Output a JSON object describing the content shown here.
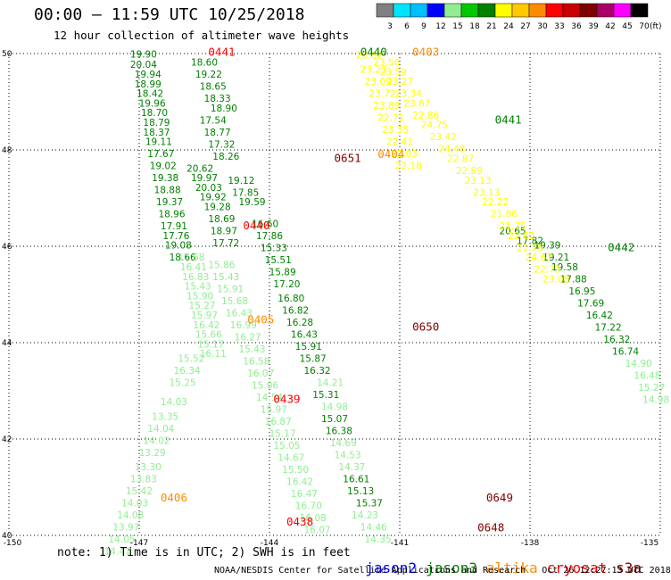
{
  "header": {
    "title": "00:00 – 11:59 UTC 10/25/2018",
    "subtitle": "12 hour collection of altimeter wave heights"
  },
  "colorbar": {
    "labels": [
      "3",
      "6",
      "9",
      "12",
      "15",
      "18",
      "21",
      "24",
      "27",
      "30",
      "33",
      "36",
      "39",
      "42",
      "45",
      "70"
    ],
    "unit": "(ft)",
    "colors": [
      "#808080",
      "#00e5ff",
      "#00bfff",
      "#0000ff",
      "#90ee90",
      "#00c800",
      "#008000",
      "#ffff00",
      "#ffc800",
      "#ff8c00",
      "#ff0000",
      "#c80000",
      "#800000",
      "#aa0066",
      "#ff00ff",
      "#000000"
    ]
  },
  "footer": {
    "note": "note: 1) Time is in UTC; 2) SWH is in feet",
    "credit": "NOAA/NESDIS Center for Satellite Applications and Research   Oct 26 12:27:13 UTC 2018",
    "legend": [
      {
        "label": "jason2",
        "color": "#0000ff"
      },
      {
        "label": "jason3",
        "color": "#008000"
      },
      {
        "label": "altika",
        "color": "#ff8c00"
      },
      {
        "label": "cryosat",
        "color": "#ff0000"
      },
      {
        "label": "s3a",
        "color": "#800000"
      }
    ]
  },
  "chart_data": {
    "type": "scatter",
    "x_ticks": [
      "-150",
      "-147",
      "-144",
      "-141",
      "-138",
      "-135"
    ],
    "y_ticks": [
      "40",
      "42",
      "44",
      "46",
      "48",
      "50"
    ],
    "xlim": [
      -150,
      -135
    ],
    "ylim": [
      40,
      50
    ],
    "grid": true,
    "track_times": [
      {
        "text": "0441",
        "lon": -145.1,
        "lat": 49.95,
        "color": "#ff0000"
      },
      {
        "text": "0440",
        "lon": -141.6,
        "lat": 49.95,
        "color": "#008000"
      },
      {
        "text": "0403",
        "lon": -140.4,
        "lat": 49.95,
        "color": "#ff8c00"
      },
      {
        "text": "0441",
        "lon": -138.5,
        "lat": 48.55,
        "color": "#008000"
      },
      {
        "text": "0404",
        "lon": -141.2,
        "lat": 47.83,
        "color": "#ff8c00"
      },
      {
        "text": "0651",
        "lon": -142.2,
        "lat": 47.75,
        "color": "#800000"
      },
      {
        "text": "0440",
        "lon": -144.3,
        "lat": 46.35,
        "color": "#ff0000"
      },
      {
        "text": "0442",
        "lon": -135.9,
        "lat": 45.9,
        "color": "#008000"
      },
      {
        "text": "0405",
        "lon": -144.2,
        "lat": 44.4,
        "color": "#ff8c00"
      },
      {
        "text": "0650",
        "lon": -140.4,
        "lat": 44.25,
        "color": "#800000"
      },
      {
        "text": "0439",
        "lon": -143.6,
        "lat": 42.75,
        "color": "#ff0000"
      },
      {
        "text": "0406",
        "lon": -146.2,
        "lat": 40.7,
        "color": "#ff8c00"
      },
      {
        "text": "0649",
        "lon": -138.7,
        "lat": 40.7,
        "color": "#800000"
      },
      {
        "text": "0438",
        "lon": -143.3,
        "lat": 40.2,
        "color": "#ff0000"
      },
      {
        "text": "0648",
        "lon": -138.9,
        "lat": 40.08,
        "color": "#800000"
      }
    ],
    "series": [
      {
        "name": "jason3",
        "color": "#008000",
        "points": [
          [
            -146.9,
            49.92,
            "19.90"
          ],
          [
            -146.9,
            49.7,
            "20.04"
          ],
          [
            -146.8,
            49.5,
            "19.94"
          ],
          [
            -146.8,
            49.3,
            "18.99"
          ],
          [
            -146.75,
            49.1,
            "18.42"
          ],
          [
            -146.7,
            48.9,
            "19.96"
          ],
          [
            -146.65,
            48.7,
            "18.70"
          ],
          [
            -146.6,
            48.5,
            "18.79"
          ],
          [
            -146.6,
            48.3,
            "18.37"
          ],
          [
            -146.55,
            48.1,
            "19.11"
          ],
          [
            -146.5,
            47.85,
            "17.67"
          ],
          [
            -146.45,
            47.6,
            "19.02"
          ],
          [
            -146.4,
            47.35,
            "19.38"
          ],
          [
            -146.35,
            47.1,
            "18.88"
          ],
          [
            -146.3,
            46.85,
            "19.37"
          ],
          [
            -146.25,
            46.6,
            "18.96"
          ],
          [
            -146.2,
            46.35,
            "17.91"
          ],
          [
            -146.15,
            46.15,
            "17.76"
          ],
          [
            -146.1,
            45.95,
            "19.08"
          ],
          [
            -146.0,
            45.7,
            "18.66"
          ],
          [
            -145.5,
            49.75,
            "18.60"
          ],
          [
            -145.4,
            49.5,
            "19.22"
          ],
          [
            -145.3,
            49.25,
            "18.65"
          ],
          [
            -145.2,
            49.0,
            "18.33"
          ],
          [
            -145.05,
            48.8,
            "18.90"
          ],
          [
            -145.3,
            48.55,
            "17.54"
          ],
          [
            -145.2,
            48.3,
            "18.77"
          ],
          [
            -145.1,
            48.05,
            "17.32"
          ],
          [
            -145.0,
            47.8,
            "18.26"
          ],
          [
            -144.65,
            47.3,
            "19.12"
          ],
          [
            -144.55,
            47.05,
            "17.85"
          ],
          [
            -144.4,
            46.85,
            "19.59"
          ],
          [
            -144.1,
            46.4,
            "16.60"
          ],
          [
            -144.0,
            46.15,
            "17.86"
          ],
          [
            -143.9,
            45.9,
            "15.33"
          ],
          [
            -143.8,
            45.65,
            "15.51"
          ],
          [
            -143.7,
            45.4,
            "15.89"
          ],
          [
            -143.6,
            45.15,
            "17.20"
          ],
          [
            -143.5,
            44.85,
            "16.80"
          ],
          [
            -143.4,
            44.6,
            "16.82"
          ],
          [
            -143.3,
            44.35,
            "16.28"
          ],
          [
            -143.2,
            44.1,
            "16.43"
          ],
          [
            -143.1,
            43.85,
            "15.91"
          ],
          [
            -143.0,
            43.6,
            "15.87"
          ],
          [
            -142.9,
            43.35,
            "16.32"
          ],
          [
            -142.7,
            42.85,
            "15.31"
          ],
          [
            -142.5,
            42.35,
            "15.07"
          ],
          [
            -142.4,
            42.1,
            "16.38"
          ],
          [
            -142.0,
            41.1,
            "16.61"
          ],
          [
            -141.9,
            40.85,
            "15.13"
          ],
          [
            -141.7,
            40.6,
            "15.37"
          ],
          [
            -145.6,
            47.55,
            "20.62"
          ],
          [
            -145.5,
            47.35,
            "19.97"
          ],
          [
            -145.4,
            47.15,
            "20.03"
          ],
          [
            -145.3,
            46.95,
            "19.92"
          ],
          [
            -145.2,
            46.75,
            "19.28"
          ],
          [
            -145.1,
            46.5,
            "18.69"
          ],
          [
            -145.05,
            46.25,
            "18.97"
          ],
          [
            -145.0,
            46.0,
            "17.72"
          ],
          [
            -137.6,
            45.95,
            "19.39"
          ],
          [
            -137.4,
            45.7,
            "19.21"
          ],
          [
            -137.2,
            45.5,
            "19.58"
          ],
          [
            -137.0,
            45.25,
            "17.88"
          ],
          [
            -136.8,
            45.0,
            "16.95"
          ],
          [
            -136.6,
            44.75,
            "17.69"
          ],
          [
            -136.4,
            44.5,
            "16.42"
          ],
          [
            -136.2,
            44.25,
            "17.22"
          ],
          [
            -136.0,
            44.0,
            "16.32"
          ],
          [
            -135.8,
            43.75,
            "16.74"
          ],
          [
            -138.0,
            46.05,
            "17.82"
          ],
          [
            -138.4,
            46.25,
            "20.65"
          ]
        ]
      },
      {
        "name": "altika",
        "color": "#ffff00",
        "points": [
          [
            -141.7,
            49.9,
            "20.82"
          ],
          [
            -141.6,
            49.6,
            "23.23"
          ],
          [
            -141.5,
            49.35,
            "23.09"
          ],
          [
            -141.4,
            49.1,
            "23.72"
          ],
          [
            -141.3,
            48.85,
            "23.89"
          ],
          [
            -141.2,
            48.6,
            "22.71"
          ],
          [
            -141.1,
            48.35,
            "23.35"
          ],
          [
            -141.0,
            48.1,
            "22.41"
          ],
          [
            -140.9,
            47.85,
            "22.03"
          ],
          [
            -140.8,
            47.6,
            "22.18"
          ],
          [
            -141.3,
            49.75,
            "23.56"
          ],
          [
            -141.15,
            49.55,
            "23.59"
          ],
          [
            -141.0,
            49.35,
            "23.27"
          ],
          [
            -140.8,
            49.1,
            "23.34"
          ],
          [
            -140.6,
            48.9,
            "23.67"
          ],
          [
            -140.4,
            48.65,
            "22.86"
          ],
          [
            -140.2,
            48.45,
            "24.75"
          ],
          [
            -140.0,
            48.2,
            "23.42"
          ],
          [
            -139.8,
            47.95,
            "24.48"
          ],
          [
            -139.6,
            47.75,
            "22.87"
          ],
          [
            -139.4,
            47.5,
            "22.89"
          ],
          [
            -139.2,
            47.3,
            "23.13"
          ],
          [
            -139.0,
            47.05,
            "23.13"
          ],
          [
            -138.8,
            46.85,
            "22.22"
          ],
          [
            -138.6,
            46.6,
            "21.86"
          ],
          [
            -138.4,
            46.35,
            "21.75"
          ],
          [
            -138.2,
            46.15,
            "22.62"
          ],
          [
            -138.0,
            45.9,
            "21.75"
          ],
          [
            -137.8,
            45.7,
            "24.67"
          ],
          [
            -137.6,
            45.45,
            "22.73"
          ],
          [
            -137.4,
            45.25,
            "23.08"
          ]
        ]
      },
      {
        "name": "jason2",
        "color": "#90ee90",
        "points": [
          [
            -145.8,
            45.7,
            "17.68"
          ],
          [
            -145.75,
            45.5,
            "16.41"
          ],
          [
            -145.7,
            45.3,
            "16.83"
          ],
          [
            -145.65,
            45.1,
            "15.43"
          ],
          [
            -145.6,
            44.9,
            "15.90"
          ],
          [
            -145.55,
            44.7,
            "15.27"
          ],
          [
            -145.5,
            44.5,
            "15.97"
          ],
          [
            -145.45,
            44.3,
            "16.42"
          ],
          [
            -145.4,
            44.1,
            "15.66"
          ],
          [
            -145.35,
            43.9,
            "15.17"
          ],
          [
            -145.3,
            43.7,
            "16.11"
          ],
          [
            -145.1,
            45.55,
            "15.86"
          ],
          [
            -145.0,
            45.3,
            "15.43"
          ],
          [
            -144.9,
            45.05,
            "15.91"
          ],
          [
            -144.8,
            44.8,
            "15.68"
          ],
          [
            -144.7,
            44.55,
            "16.43"
          ],
          [
            -144.6,
            44.3,
            "16.99"
          ],
          [
            -144.5,
            44.05,
            "16.27"
          ],
          [
            -144.4,
            43.8,
            "15.43"
          ],
          [
            -144.3,
            43.55,
            "16.58"
          ],
          [
            -144.2,
            43.3,
            "16.07"
          ],
          [
            -144.1,
            43.05,
            "15.06"
          ],
          [
            -144.0,
            42.8,
            "14.54"
          ],
          [
            -143.9,
            42.55,
            "15.97"
          ],
          [
            -143.8,
            42.3,
            "16.87"
          ],
          [
            -143.7,
            42.05,
            "15.17"
          ],
          [
            -143.6,
            41.8,
            "15.05"
          ],
          [
            -143.5,
            41.55,
            "14.67"
          ],
          [
            -143.4,
            41.3,
            "15.50"
          ],
          [
            -143.3,
            41.05,
            "16.42"
          ],
          [
            -143.2,
            40.8,
            "16.47"
          ],
          [
            -143.1,
            40.55,
            "16.70"
          ],
          [
            -143.0,
            40.3,
            "16.08"
          ],
          [
            -142.9,
            40.05,
            "16.07"
          ],
          [
            -145.8,
            43.6,
            "15.52"
          ],
          [
            -145.9,
            43.35,
            "16.34"
          ],
          [
            -146.0,
            43.1,
            "15.25"
          ],
          [
            -146.2,
            42.7,
            "14.03"
          ],
          [
            -146.4,
            42.4,
            "13.35"
          ],
          [
            -146.5,
            42.15,
            "14.04"
          ],
          [
            -146.6,
            41.9,
            "14.02"
          ],
          [
            -146.7,
            41.65,
            "13.29"
          ],
          [
            -146.8,
            41.35,
            "13.30"
          ],
          [
            -146.9,
            41.1,
            "13.83"
          ],
          [
            -147.0,
            40.85,
            "15.42"
          ],
          [
            -147.1,
            40.6,
            "14.03"
          ],
          [
            -147.2,
            40.35,
            "14.08"
          ],
          [
            -147.3,
            40.1,
            "13.97"
          ],
          [
            -147.4,
            39.85,
            "14.05"
          ],
          [
            -147.5,
            39.6,
            "14.41"
          ],
          [
            -142.6,
            43.1,
            "14.21"
          ],
          [
            -142.5,
            42.6,
            "14.98"
          ],
          [
            -142.3,
            41.85,
            "14.69"
          ],
          [
            -142.2,
            41.6,
            "14.53"
          ],
          [
            -142.1,
            41.35,
            "14.37"
          ],
          [
            -141.8,
            40.35,
            "14.23"
          ],
          [
            -141.6,
            40.1,
            "14.46"
          ],
          [
            -141.5,
            39.85,
            "14.35"
          ],
          [
            -135.5,
            43.5,
            "14.90"
          ],
          [
            -135.3,
            43.25,
            "16.48"
          ],
          [
            -135.2,
            43.0,
            "15.27"
          ],
          [
            -135.1,
            42.75,
            "14.98"
          ]
        ]
      }
    ]
  }
}
